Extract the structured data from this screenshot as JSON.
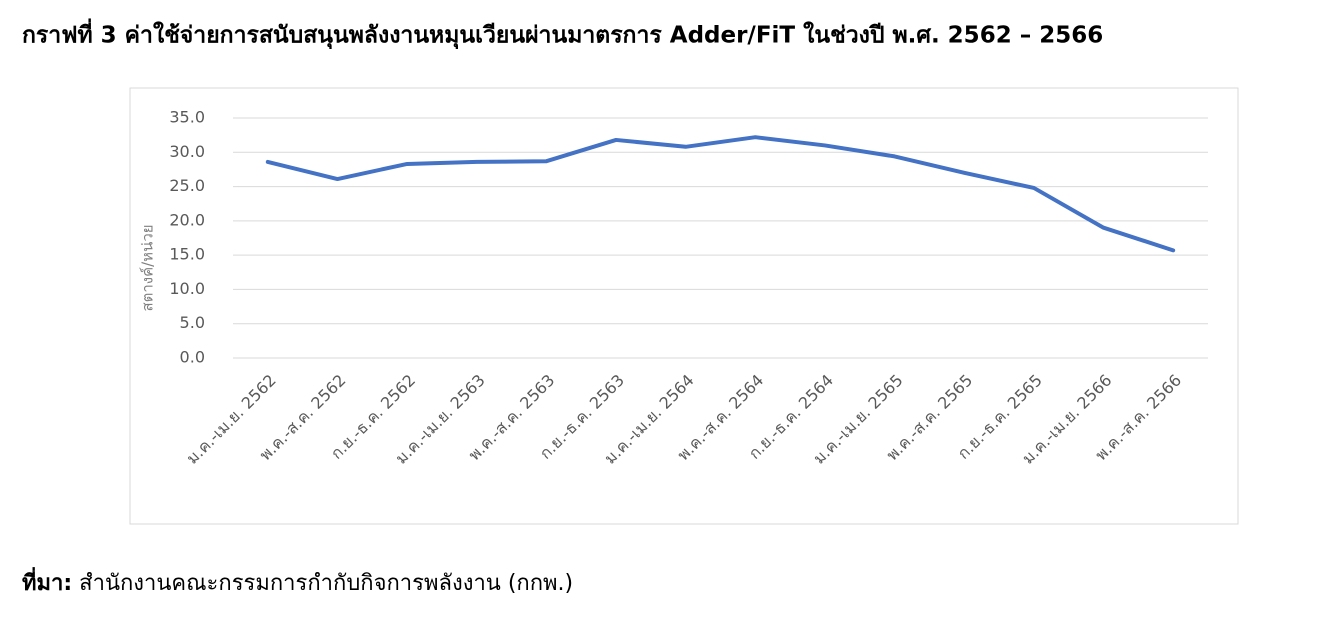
{
  "title": "กราฟที่ 3 ค่าใช้จ่ายการสนับสนุนพลังงานหมุนเวียนผ่านมาตรการ Adder/FiT ในช่วงปี พ.ศ. 2562 – 2566",
  "chart_data": {
    "type": "line",
    "y_label": "สตางค์/หน่วย",
    "categories": [
      "ม.ค.-เม.ย. 2562",
      "พ.ค.-ส.ค. 2562",
      "ก.ย.-ธ.ค. 2562",
      "ม.ค.-เม.ย. 2563",
      "พ.ค.-ส.ค. 2563",
      "ก.ย.-ธ.ค. 2563",
      "ม.ค.-เม.ย. 2564",
      "พ.ค.-ส.ค. 2564",
      "ก.ย.-ธ.ค. 2564",
      "ม.ค.-เม.ย. 2565",
      "พ.ค.-ส.ค. 2565",
      "ก.ย.-ธ.ค. 2565",
      "ม.ค.-เม.ย. 2566",
      "พ.ค.-ส.ค. 2566"
    ],
    "values": [
      28.6,
      26.1,
      28.3,
      28.6,
      28.7,
      31.8,
      30.8,
      32.2,
      31.0,
      29.4,
      27.0,
      24.8,
      19.0,
      15.7
    ],
    "color": "#4472c4",
    "ylim": [
      0,
      35
    ],
    "yticks": [
      {
        "value": 0,
        "label": "0.0"
      },
      {
        "value": 5,
        "label": "5.0"
      },
      {
        "value": 10,
        "label": "10.0"
      },
      {
        "value": 15,
        "label": "15.0"
      },
      {
        "value": 20,
        "label": "20.0"
      },
      {
        "value": 25,
        "label": "25.0"
      },
      {
        "value": 30,
        "label": "30.0"
      },
      {
        "value": 35,
        "label": "35.0"
      }
    ],
    "grid": true
  },
  "source": {
    "label": "ที่มา:",
    "text": "สำนักงานคณะกรรมการกำกับกิจการพลังงาน (กกพ.)"
  }
}
